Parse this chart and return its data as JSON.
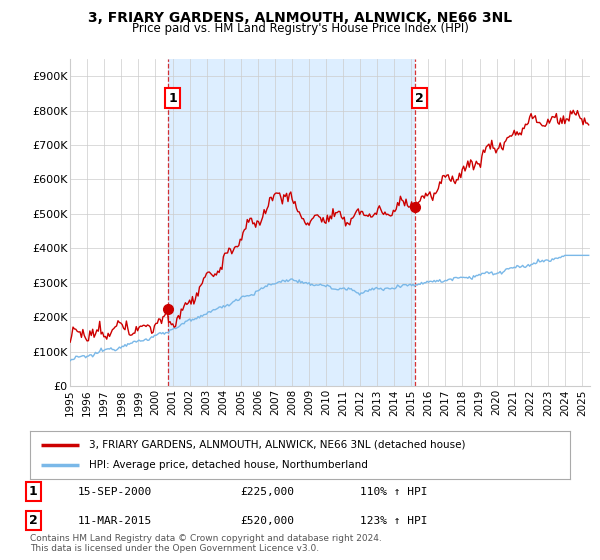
{
  "title": "3, FRIARY GARDENS, ALNMOUTH, ALNWICK, NE66 3NL",
  "subtitle": "Price paid vs. HM Land Registry's House Price Index (HPI)",
  "xlim_start": 1995.0,
  "xlim_end": 2025.5,
  "ylim_min": 0,
  "ylim_max": 950000,
  "yticks": [
    0,
    100000,
    200000,
    300000,
    400000,
    500000,
    600000,
    700000,
    800000,
    900000
  ],
  "ytick_labels": [
    "£0",
    "£100K",
    "£200K",
    "£300K",
    "£400K",
    "£500K",
    "£600K",
    "£700K",
    "£800K",
    "£900K"
  ],
  "sale1_x": 2000.71,
  "sale1_y": 225000,
  "sale1_label": "1",
  "sale2_x": 2015.19,
  "sale2_y": 520000,
  "sale2_label": "2",
  "vline1_x": 2000.71,
  "vline2_x": 2015.19,
  "legend_line1": "3, FRIARY GARDENS, ALNMOUTH, ALNWICK, NE66 3NL (detached house)",
  "legend_line2": "HPI: Average price, detached house, Northumberland",
  "table_row1_num": "1",
  "table_row1_date": "15-SEP-2000",
  "table_row1_price": "£225,000",
  "table_row1_hpi": "110% ↑ HPI",
  "table_row2_num": "2",
  "table_row2_date": "11-MAR-2015",
  "table_row2_price": "£520,000",
  "table_row2_hpi": "123% ↑ HPI",
  "footer": "Contains HM Land Registry data © Crown copyright and database right 2024.\nThis data is licensed under the Open Government Licence v3.0.",
  "hpi_color": "#7ab8e8",
  "price_color": "#cc0000",
  "vline_color": "#cc0000",
  "shade_color": "#ddeeff",
  "background_color": "#ffffff",
  "grid_color": "#cccccc"
}
